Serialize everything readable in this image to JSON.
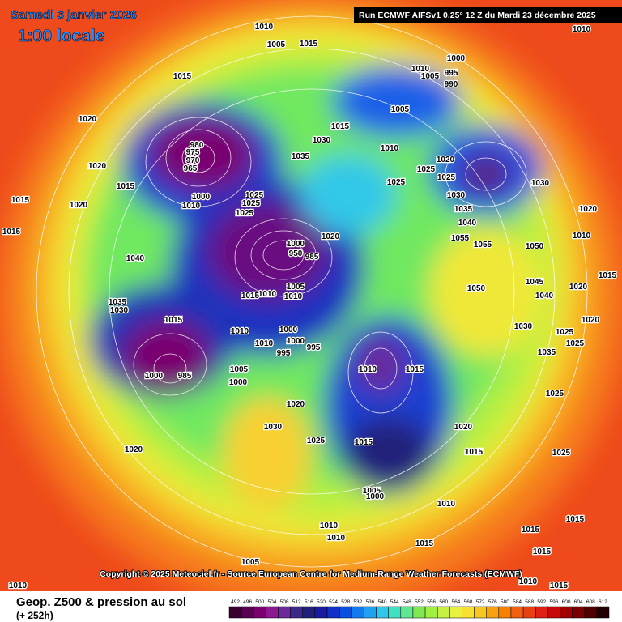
{
  "header": {
    "date": "Samedi 3 janvier 2026",
    "time": "1:00 locale",
    "run": "Run ECMWF AIFSv1 0.25° 12 Z du Mardi 23 décembre 2025"
  },
  "copyright": "Copyright © 2025 Meteociel.fr - Source European Centre for Medium-Range Weather Forecasts (ECMWF)",
  "footer": {
    "title": "Geop. Z500 & pression au sol",
    "lead": "(+ 252h)"
  },
  "colorbar": {
    "ticks": [
      492,
      496,
      500,
      504,
      508,
      512,
      516,
      520,
      524,
      528,
      532,
      536,
      540,
      544,
      548,
      552,
      556,
      560,
      564,
      568,
      572,
      576,
      580,
      584,
      588,
      592,
      596,
      600,
      604,
      608,
      612
    ],
    "colors": [
      "#3a0030",
      "#5a0050",
      "#7a0070",
      "#8a1890",
      "#6a2a9a",
      "#3a2a8a",
      "#20207a",
      "#1a1aa0",
      "#1030c8",
      "#0a50e0",
      "#1478f0",
      "#20a0f0",
      "#30c8e8",
      "#40e0c0",
      "#60e890",
      "#80e850",
      "#a0f040",
      "#c8f040",
      "#e8f040",
      "#f8e030",
      "#f8c820",
      "#f8a010",
      "#f88000",
      "#f06010",
      "#e84010",
      "#e02010",
      "#c80808",
      "#a00000",
      "#780000",
      "#500000",
      "#200000"
    ]
  },
  "isobar_labels": [
    1010,
    1005,
    1015,
    1015,
    1010,
    1000,
    1010,
    1005,
    995,
    990,
    1005,
    1020,
    1015,
    980,
    975,
    970,
    965,
    1035,
    1030,
    1010,
    1020,
    1025,
    1025,
    1030,
    1020,
    1015,
    1015,
    1020,
    1010,
    1000,
    1025,
    1025,
    1025,
    1025,
    1030,
    1035,
    1040,
    1020,
    1010,
    1015,
    1020,
    1055,
    1055,
    1050,
    1040,
    1000,
    950,
    985,
    1005,
    1010,
    1010,
    1015,
    1050,
    1045,
    1040,
    1020,
    1015,
    1035,
    1030,
    1015,
    1010,
    1000,
    1000,
    1010,
    995,
    995,
    1030,
    1025,
    1020,
    1025,
    1035,
    1010,
    1015,
    1005,
    1000,
    1000,
    985,
    1025,
    1020,
    1030,
    1020,
    1025,
    1015,
    1015,
    1020,
    1025,
    1005,
    1000,
    1010,
    1010,
    1010,
    1015,
    1015,
    1015,
    1015,
    1005,
    1010,
    1015,
    1010
  ]
}
